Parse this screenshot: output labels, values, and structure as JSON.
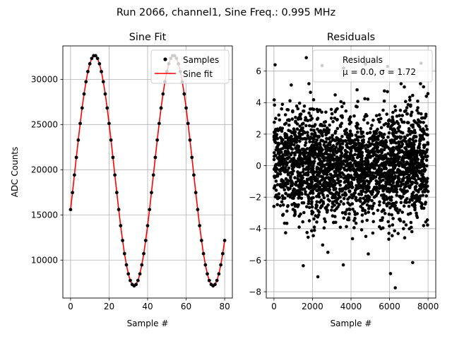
{
  "figure": {
    "suptitle": "Run 2066, channel1, Sine Freq.: 0.995 MHz"
  },
  "chart_data": [
    {
      "type": "line",
      "title": "Sine Fit",
      "xlabel": "Sample #",
      "ylabel": "ADC Counts",
      "xlim": [
        -4,
        84
      ],
      "ylim": [
        5800,
        33700
      ],
      "xticks": [
        0,
        20,
        40,
        60,
        80
      ],
      "yticks": [
        10000,
        15000,
        20000,
        25000,
        30000
      ],
      "grid": true,
      "legend": {
        "location": "top-right",
        "entries": [
          "Samples",
          "Sine fit"
        ]
      },
      "model": {
        "amplitude": 12750,
        "offset": 19900,
        "period": 41.0,
        "peak_sample": 12.5,
        "samples": 81
      },
      "series": [
        {
          "name": "Samples",
          "kind": "scatter",
          "color": "#000000"
        },
        {
          "name": "Sine fit",
          "kind": "line",
          "color": "#ff0000"
        }
      ]
    },
    {
      "type": "scatter",
      "title": "Residuals",
      "xlabel": "Sample #",
      "ylabel": "",
      "xlim": [
        -400,
        8400
      ],
      "ylim": [
        -8.4,
        7.6
      ],
      "xticks": [
        0,
        2000,
        4000,
        6000,
        8000
      ],
      "yticks": [
        -8,
        -6,
        -4,
        -2,
        0,
        2,
        4,
        6
      ],
      "grid": true,
      "legend": {
        "location": "top-right",
        "entries": [
          "Residuals",
          "μ = 0.0, σ = 1.72"
        ]
      },
      "stats": {
        "mean": 0.0,
        "sigma": 1.72,
        "n_samples": 8000
      },
      "series": [
        {
          "name": "Residuals",
          "color": "#000000"
        }
      ],
      "outliers": [
        {
          "x": 60,
          "y": 6.4
        },
        {
          "x": 1680,
          "y": 6.85
        },
        {
          "x": 2500,
          "y": 6.35
        },
        {
          "x": 3620,
          "y": 6.2
        },
        {
          "x": 4750,
          "y": 6.45
        },
        {
          "x": 5900,
          "y": 6.3
        },
        {
          "x": 7640,
          "y": 6.5
        },
        {
          "x": 2280,
          "y": -7.05
        },
        {
          "x": 6300,
          "y": -7.75
        },
        {
          "x": 6050,
          "y": -6.85
        },
        {
          "x": 1520,
          "y": -6.35
        },
        {
          "x": 3600,
          "y": -6.3
        },
        {
          "x": 7200,
          "y": -6.15
        },
        {
          "x": 4900,
          "y": -5.6
        },
        {
          "x": 2800,
          "y": -5.5
        }
      ]
    }
  ]
}
